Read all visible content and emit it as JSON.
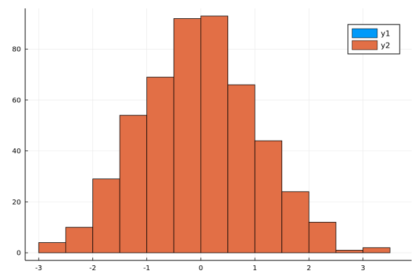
{
  "chart_data": {
    "type": "bar",
    "subtype": "histogram",
    "title": "",
    "xlabel": "",
    "ylabel": "",
    "bin_edges": [
      -3,
      -2.5,
      -2,
      -1.5,
      -1,
      -0.5,
      0,
      0.5,
      1,
      1.5,
      2,
      2.5,
      3,
      3.5
    ],
    "series": [
      {
        "name": "y1",
        "color": "#009af9",
        "values": []
      },
      {
        "name": "y2",
        "color": "#e26f46",
        "values": [
          4,
          10,
          29,
          54,
          69,
          92,
          93,
          66,
          44,
          24,
          12,
          1,
          2
        ]
      }
    ],
    "xlim": [
      -3.25,
      3.9
    ],
    "ylim": [
      -3,
      96
    ],
    "xticks": [
      -3,
      -2,
      -1,
      0,
      1,
      2,
      3
    ],
    "xtick_labels": [
      "-3",
      "-2",
      "-1",
      "0",
      "1",
      "2",
      "3"
    ],
    "yticks": [
      0,
      20,
      40,
      60,
      80
    ],
    "ytick_labels": [
      "0",
      "20",
      "40",
      "60",
      "80"
    ],
    "grid": true,
    "legend_position": "top-right"
  }
}
